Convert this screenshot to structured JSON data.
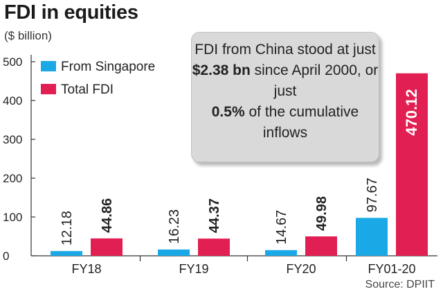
{
  "chart_data": {
    "type": "bar",
    "title": "FDI in equities",
    "unit": "($ billion)",
    "categories": [
      "FY18",
      "FY19",
      "FY20",
      "FY01-20"
    ],
    "series": [
      {
        "name": "From Singapore",
        "color": "#1aa9e6",
        "values": [
          12.18,
          16.23,
          14.67,
          97.67
        ],
        "labels": [
          "12.18",
          "16.23",
          "14.67",
          "97.67"
        ],
        "label_bold": false
      },
      {
        "name": "Total FDI",
        "color": "#e21f53",
        "values": [
          44.86,
          44.37,
          49.98,
          470.12
        ],
        "labels": [
          "44.86",
          "44.37",
          "49.98",
          "470.12"
        ],
        "label_bold": true
      }
    ],
    "y_ticks": [
      0,
      100,
      200,
      300,
      400,
      500
    ],
    "ylim": [
      0,
      500
    ],
    "legend_position": "top-left",
    "grid": false,
    "source": "Source: DPIIT"
  },
  "callout": {
    "parts": [
      {
        "text": "FDI from China stood at just ",
        "bold": false
      },
      {
        "text": "$2.38 bn",
        "bold": true
      },
      {
        "text": " since April 2000, or just ",
        "bold": false
      },
      {
        "text": "0.5%",
        "bold": true
      },
      {
        "text": " of the cumulative inflows",
        "bold": false
      }
    ]
  }
}
